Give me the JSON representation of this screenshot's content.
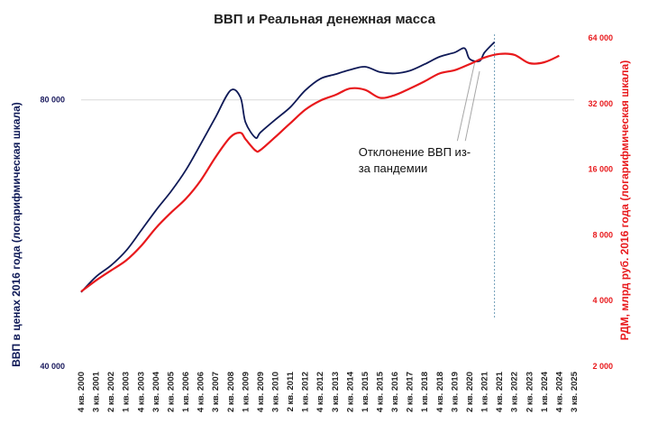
{
  "chart_data": {
    "type": "line",
    "title": "ВВП и Реальная денежная масса",
    "ylabel_left": "ВВП в ценах 2016 года (логарифмическая шкала)",
    "ylabel_right": "РДМ, млрд руб. 2016 года (логарифмическая шкала)",
    "scale": "log",
    "left_axis": {
      "ticks": [
        40000,
        80000
      ],
      "tick_labels": [
        "40 000",
        "80 000"
      ],
      "range": [
        40000,
        94000
      ]
    },
    "right_axis": {
      "ticks": [
        2000,
        4000,
        8000,
        16000,
        32000,
        64000
      ],
      "tick_labels": [
        "2 000",
        "4 000",
        "8 000",
        "16 000",
        "32 000",
        "64 000"
      ],
      "range": [
        2000,
        64000
      ]
    },
    "gridlines": [
      80000
    ],
    "x_labels": [
      "4 кв. 2000",
      "3 кв. 2001",
      "2 кв. 2002",
      "1 кв. 2003",
      "4 кв. 2003",
      "3 кв. 2004",
      "2 кв. 2005",
      "1 кв. 2006",
      "4 кв. 2006",
      "3 кв. 2007",
      "2 кв. 2008",
      "1 кв. 2009",
      "4 кв. 2009",
      "3 кв. 2010",
      "2 кв. 2011",
      "1 кв. 2012",
      "4 кв. 2012",
      "3 кв. 2013",
      "2 кв. 2014",
      "1 кв. 2015",
      "4 кв. 2015",
      "3 кв. 2016",
      "2 кв. 2017",
      "1 кв. 2018",
      "4 кв. 2018",
      "3 кв. 2019",
      "2 кв. 2020",
      "1 кв. 2021",
      "4 кв. 2021",
      "3 кв. 2022",
      "2 кв. 2023",
      "1 кв. 2024",
      "4 кв. 2024",
      "3 кв. 2025"
    ],
    "vline_at": "3 кв. 2021",
    "series": [
      {
        "axis": "left",
        "color": "#0f1a57",
        "points": [
          {
            "x": "4 кв. 2000",
            "y": 48500
          },
          {
            "x": "3 кв. 2001",
            "y": 50500
          },
          {
            "x": "2 кв. 2002",
            "y": 52000
          },
          {
            "x": "1 кв. 2003",
            "y": 54000
          },
          {
            "x": "4 кв. 2003",
            "y": 56900
          },
          {
            "x": "3 кв. 2004",
            "y": 60000
          },
          {
            "x": "2 кв. 2005",
            "y": 63000
          },
          {
            "x": "1 кв. 2006",
            "y": 66600
          },
          {
            "x": "4 кв. 2006",
            "y": 71300
          },
          {
            "x": "3 кв. 2007",
            "y": 76500
          },
          {
            "x": "2 кв. 2008",
            "y": 82000
          },
          {
            "x": "4 кв. 2008",
            "y": 80500
          },
          {
            "x": "1 кв. 2009",
            "y": 75500
          },
          {
            "x": "3 кв. 2009",
            "y": 72500
          },
          {
            "x": "4 кв. 2009",
            "y": 73500
          },
          {
            "x": "3 кв. 2010",
            "y": 76000
          },
          {
            "x": "2 кв. 2011",
            "y": 78500
          },
          {
            "x": "1 кв. 2012",
            "y": 82000
          },
          {
            "x": "4 кв. 2012",
            "y": 84500
          },
          {
            "x": "3 кв. 2013",
            "y": 85500
          },
          {
            "x": "2 кв. 2014",
            "y": 86500
          },
          {
            "x": "1 кв. 2015",
            "y": 87200
          },
          {
            "x": "4 кв. 2015",
            "y": 86000
          },
          {
            "x": "3 кв. 2016",
            "y": 85700
          },
          {
            "x": "2 кв. 2017",
            "y": 86300
          },
          {
            "x": "1 кв. 2018",
            "y": 87800
          },
          {
            "x": "4 кв. 2018",
            "y": 89500
          },
          {
            "x": "3 кв. 2019",
            "y": 90500
          },
          {
            "x": "1 кв. 2020",
            "y": 91500
          },
          {
            "x": "2 кв. 2020",
            "y": 89000
          },
          {
            "x": "4 кв. 2020",
            "y": 88500
          },
          {
            "x": "1 кв. 2021",
            "y": 90500
          },
          {
            "x": "3 кв. 2021",
            "y": 93000
          }
        ]
      },
      {
        "axis": "right",
        "color": "#e8191c",
        "points": [
          {
            "x": "4 кв. 2000",
            "y": 4400
          },
          {
            "x": "3 кв. 2001",
            "y": 4950
          },
          {
            "x": "2 кв. 2002",
            "y": 5500
          },
          {
            "x": "1 кв. 2003",
            "y": 6100
          },
          {
            "x": "4 кв. 2003",
            "y": 7100
          },
          {
            "x": "3 кв. 2004",
            "y": 8600
          },
          {
            "x": "2 кв. 2005",
            "y": 10100
          },
          {
            "x": "1 кв. 2006",
            "y": 11700
          },
          {
            "x": "4 кв. 2006",
            "y": 14200
          },
          {
            "x": "3 кв. 2007",
            "y": 18200
          },
          {
            "x": "2 кв. 2008",
            "y": 22500
          },
          {
            "x": "4 кв. 2008",
            "y": 23500
          },
          {
            "x": "1 кв. 2009",
            "y": 22000
          },
          {
            "x": "3 кв. 2009",
            "y": 19500
          },
          {
            "x": "4 кв. 2009",
            "y": 19600
          },
          {
            "x": "3 кв. 2010",
            "y": 22500
          },
          {
            "x": "2 кв. 2011",
            "y": 26000
          },
          {
            "x": "1 кв. 2012",
            "y": 30000
          },
          {
            "x": "4 кв. 2012",
            "y": 33000
          },
          {
            "x": "3 кв. 2013",
            "y": 35000
          },
          {
            "x": "2 кв. 2014",
            "y": 37500
          },
          {
            "x": "1 кв. 2015",
            "y": 37000
          },
          {
            "x": "4 кв. 2015",
            "y": 34000
          },
          {
            "x": "3 кв. 2016",
            "y": 35000
          },
          {
            "x": "2 кв. 2017",
            "y": 37500
          },
          {
            "x": "1 кв. 2018",
            "y": 40500
          },
          {
            "x": "4 кв. 2018",
            "y": 44000
          },
          {
            "x": "3 кв. 2019",
            "y": 45500
          },
          {
            "x": "2 кв. 2020",
            "y": 48500
          },
          {
            "x": "1 кв. 2021",
            "y": 52000
          },
          {
            "x": "4 кв. 2021",
            "y": 54000
          },
          {
            "x": "3 кв. 2022",
            "y": 53500
          },
          {
            "x": "2 кв. 2023",
            "y": 49000
          },
          {
            "x": "1 кв. 2024",
            "y": 49500
          },
          {
            "x": "4 кв. 2024",
            "y": 53000
          }
        ]
      }
    ],
    "annotation": {
      "lines": [
        "Отклонение ВВП из-",
        "за пандемии"
      ],
      "x": "4 кв. 2017",
      "y_right": 17500,
      "targets": [
        {
          "x": "3 кв. 2020",
          "y_right": 49000
        },
        {
          "x": "4 кв. 2020",
          "y_right": 45000
        }
      ]
    }
  }
}
